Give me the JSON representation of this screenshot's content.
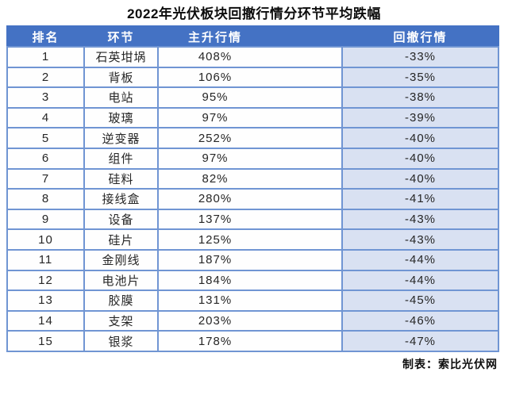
{
  "title": "2022年光伏板块回撤行情分环节平均跌幅",
  "footer_credit": "制表：索比光伏网",
  "colors": {
    "header_bg": "#4472C4",
    "header_text": "#FFFFFF",
    "drawdown_column_bg": "#D9E1F2",
    "row_border": "#7095D3",
    "body_text": "#262626"
  },
  "chart_data": {
    "type": "table",
    "title": "2022年光伏板块回撤行情分环节平均跌幅",
    "columns": [
      "排名",
      "环节",
      "主升行情",
      "回撤行情"
    ],
    "rows": [
      [
        "1",
        "石英坩埚",
        "408%",
        "-33%"
      ],
      [
        "2",
        "背板",
        "106%",
        "-35%"
      ],
      [
        "3",
        "电站",
        "95%",
        "-38%"
      ],
      [
        "4",
        "玻璃",
        "97%",
        "-39%"
      ],
      [
        "5",
        "逆变器",
        "252%",
        "-40%"
      ],
      [
        "6",
        "组件",
        "97%",
        "-40%"
      ],
      [
        "7",
        "硅料",
        "82%",
        "-40%"
      ],
      [
        "8",
        "接线盒",
        "280%",
        "-41%"
      ],
      [
        "9",
        "设备",
        "137%",
        "-43%"
      ],
      [
        "10",
        "硅片",
        "125%",
        "-43%"
      ],
      [
        "11",
        "金刚线",
        "187%",
        "-44%"
      ],
      [
        "12",
        "电池片",
        "184%",
        "-44%"
      ],
      [
        "13",
        "胶膜",
        "131%",
        "-45%"
      ],
      [
        "14",
        "支架",
        "203%",
        "-46%"
      ],
      [
        "15",
        "银浆",
        "178%",
        "-47%"
      ]
    ],
    "layout": {
      "header_row": true,
      "highlighted_column_index": 3,
      "footer_credit": "制表：索比光伏网"
    }
  }
}
